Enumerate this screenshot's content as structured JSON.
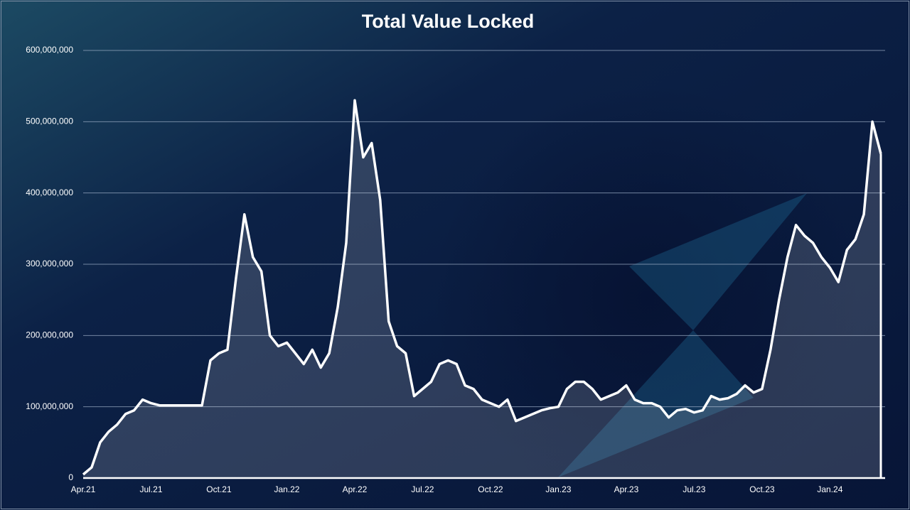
{
  "chart_data": {
    "type": "area",
    "title": "Total Value Locked",
    "categories": [
      "Apr.21",
      null,
      null,
      null,
      null,
      null,
      null,
      null,
      "Jul.21",
      null,
      null,
      null,
      null,
      null,
      null,
      null,
      "Oct.21",
      null,
      null,
      null,
      null,
      null,
      null,
      null,
      "Jan.22",
      null,
      null,
      null,
      null,
      null,
      null,
      null,
      "Apr.22",
      null,
      null,
      null,
      null,
      null,
      null,
      null,
      "Jul.22",
      null,
      null,
      null,
      null,
      null,
      null,
      null,
      "Oct.22",
      null,
      null,
      null,
      null,
      null,
      null,
      null,
      "Jan.23",
      null,
      null,
      null,
      null,
      null,
      null,
      null,
      "Apr.23",
      null,
      null,
      null,
      null,
      null,
      null,
      null,
      "Jul.23",
      null,
      null,
      null,
      null,
      null,
      null,
      null,
      "Oct.23",
      null,
      null,
      null,
      null,
      null,
      null,
      null,
      "Jan.24",
      null,
      null,
      null,
      null,
      null,
      null
    ],
    "values": [
      5000000,
      15000000,
      50000000,
      65000000,
      75000000,
      90000000,
      95000000,
      110000000,
      105000000,
      102000000,
      102000000,
      102000000,
      102000000,
      102000000,
      102000000,
      165000000,
      175000000,
      180000000,
      280000000,
      370000000,
      310000000,
      290000000,
      200000000,
      185000000,
      190000000,
      175000000,
      160000000,
      180000000,
      155000000,
      175000000,
      240000000,
      330000000,
      530000000,
      450000000,
      470000000,
      390000000,
      220000000,
      185000000,
      175000000,
      115000000,
      125000000,
      135000000,
      160000000,
      165000000,
      160000000,
      130000000,
      125000000,
      110000000,
      105000000,
      100000000,
      110000000,
      80000000,
      85000000,
      90000000,
      95000000,
      98000000,
      100000000,
      125000000,
      135000000,
      135000000,
      125000000,
      110000000,
      115000000,
      120000000,
      130000000,
      110000000,
      105000000,
      105000000,
      100000000,
      85000000,
      95000000,
      97000000,
      92000000,
      95000000,
      115000000,
      110000000,
      112000000,
      118000000,
      130000000,
      120000000,
      125000000,
      180000000,
      250000000,
      310000000,
      355000000,
      340000000,
      330000000,
      310000000,
      295000000,
      275000000,
      320000000,
      335000000,
      370000000,
      500000000,
      455000000
    ],
    "color": "#ffffff",
    "ylim": [
      0,
      600000000
    ],
    "yticks": [
      0,
      {
        "value": 100000000,
        "label": "100,000,000"
      },
      {
        "value": 200000000,
        "label": "200,000,000"
      },
      {
        "value": 300000000,
        "label": "300,000,000"
      },
      {
        "value": 400000000,
        "label": "400,000,000"
      },
      {
        "value": 500000000,
        "label": "500,000,000"
      },
      {
        "value": 600000000,
        "label": "600,000,000"
      }
    ],
    "grid": true
  }
}
